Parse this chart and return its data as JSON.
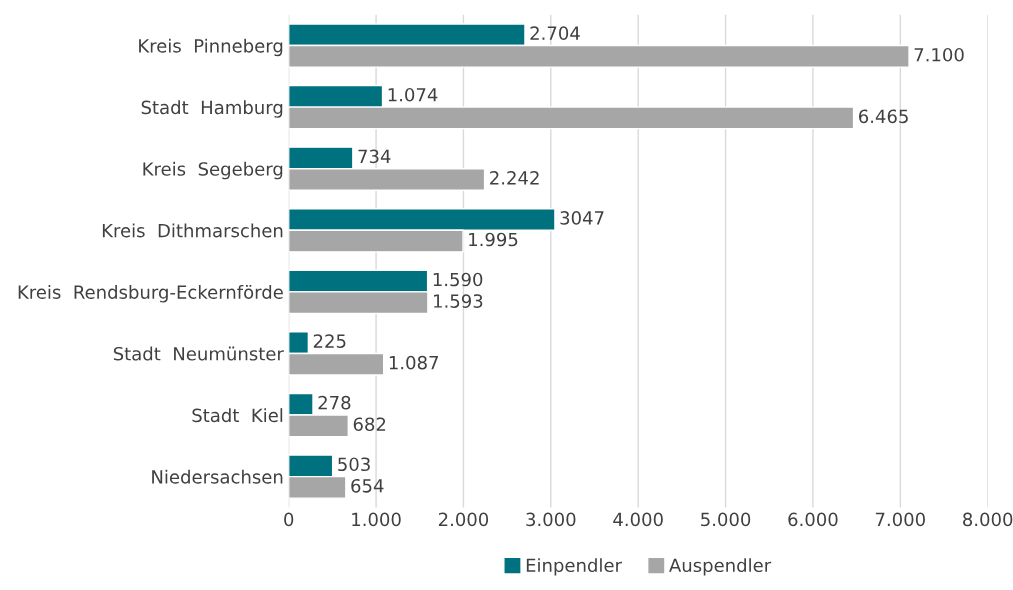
{
  "chart_data": {
    "type": "bar",
    "orientation": "horizontal",
    "categories": [
      "Kreis  Pinneberg",
      "Stadt  Hamburg",
      "Kreis  Segeberg",
      "Kreis  Dithmarschen",
      "Kreis  Rendsburg-Eckernförde",
      "Stadt  Neumünster",
      "Stadt  Kiel",
      "Niedersachsen"
    ],
    "series": [
      {
        "name": "Einpendler",
        "color": "#00717f",
        "values": [
          2704,
          1074,
          734,
          3047,
          1590,
          225,
          278,
          503
        ],
        "value_labels": [
          "2.704",
          "1.074",
          "734",
          "3047",
          "1.590",
          "225",
          "278",
          "503"
        ]
      },
      {
        "name": "Auspendler",
        "color": "#a6a6a6",
        "values": [
          7100,
          6465,
          2242,
          1995,
          1593,
          1087,
          682,
          654
        ],
        "value_labels": [
          "7.100",
          "6.465",
          "2.242",
          "1.995",
          "1.593",
          "1.087",
          "682",
          "654"
        ]
      }
    ],
    "xlim": [
      0,
      8000
    ],
    "xticks": [
      0,
      {
        "value": 1000,
        "label": "1.000"
      },
      {
        "value": 2000,
        "label": "2.000"
      },
      {
        "value": 3000,
        "label": "3.000"
      },
      {
        "value": 4000,
        "label": "4.000"
      },
      {
        "value": 5000,
        "label": "5.000"
      },
      {
        "value": 6000,
        "label": "6.000"
      },
      {
        "value": 7000,
        "label": "7.000"
      },
      {
        "value": 8000,
        "label": "8.000"
      }
    ],
    "grid": "x",
    "legend": "bottom"
  }
}
